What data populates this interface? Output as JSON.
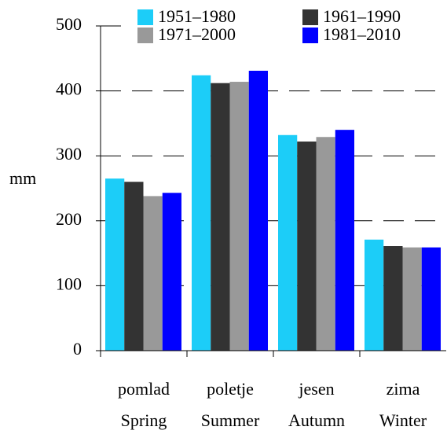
{
  "chart_data": {
    "type": "bar",
    "y_label": "mm",
    "categories": [
      [
        "pomlad",
        "Spring"
      ],
      [
        "poletje",
        "Summer"
      ],
      [
        "jesen",
        "Autumn"
      ],
      [
        "zima",
        "Winter"
      ]
    ],
    "series": [
      {
        "name": "1951–1980",
        "color": "#1ccdf8",
        "values": [
          265,
          424,
          332,
          171
        ]
      },
      {
        "name": "1961–1990",
        "color": "#333333",
        "values": [
          260,
          412,
          322,
          161
        ]
      },
      {
        "name": "1971–2000",
        "color": "#999999",
        "values": [
          238,
          414,
          329,
          159
        ]
      },
      {
        "name": "1981–2010",
        "color": "#0000ff",
        "values": [
          243,
          431,
          340,
          159
        ]
      }
    ],
    "ylim": [
      0,
      500
    ],
    "yticks": [
      0,
      100,
      200,
      300,
      400,
      500
    ],
    "grid": true
  }
}
